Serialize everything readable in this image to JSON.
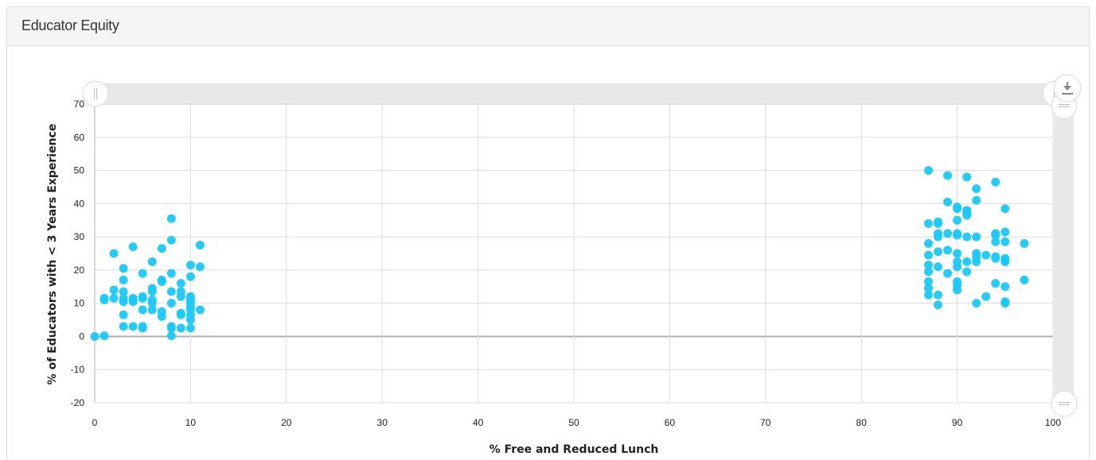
{
  "panel": {
    "title": "Educator Equity"
  },
  "colors": {
    "point": "#1ec8f5",
    "grid": "#dcdcdc",
    "zero_line": "#b0b0b0",
    "scrollbar": "#e8e8e8"
  },
  "chart_data": {
    "type": "scatter",
    "title": "",
    "xlabel": "% Free and Reduced Lunch",
    "ylabel": "% of Educators with < 3 Years Experience",
    "xlim": [
      0,
      100
    ],
    "ylim": [
      -20,
      70
    ],
    "xticks": [
      0,
      10,
      20,
      30,
      40,
      50,
      60,
      70,
      80,
      90,
      100
    ],
    "yticks": [
      -20,
      -10,
      0,
      10,
      20,
      30,
      40,
      50,
      60,
      70
    ],
    "grid": true,
    "series": [
      {
        "points": [
          [
            0,
            0
          ],
          [
            1,
            0.2
          ],
          [
            1,
            11
          ],
          [
            1,
            11.5
          ],
          [
            2,
            11.5
          ],
          [
            2,
            14
          ],
          [
            2,
            25
          ],
          [
            3,
            3
          ],
          [
            3,
            6.5
          ],
          [
            3,
            10.5
          ],
          [
            3,
            11.5
          ],
          [
            3,
            13.5
          ],
          [
            3,
            17
          ],
          [
            3,
            20.5
          ],
          [
            4,
            3
          ],
          [
            4,
            10.5
          ],
          [
            4,
            11
          ],
          [
            4,
            11.5
          ],
          [
            4,
            27
          ],
          [
            5,
            2.5
          ],
          [
            5,
            3
          ],
          [
            5,
            8
          ],
          [
            5,
            11.5
          ],
          [
            5,
            12
          ],
          [
            5,
            19
          ],
          [
            6,
            8
          ],
          [
            6,
            10
          ],
          [
            6,
            11
          ],
          [
            6,
            13.5
          ],
          [
            6,
            14.5
          ],
          [
            6,
            22.5
          ],
          [
            7,
            6
          ],
          [
            7,
            7.5
          ],
          [
            7,
            16.5
          ],
          [
            7,
            17
          ],
          [
            7,
            26.5
          ],
          [
            8,
            0.2
          ],
          [
            8,
            2.5
          ],
          [
            8,
            3
          ],
          [
            8,
            10
          ],
          [
            8,
            13.5
          ],
          [
            8,
            19
          ],
          [
            8,
            29
          ],
          [
            8,
            35.5
          ],
          [
            9,
            2.5
          ],
          [
            9,
            6.5
          ],
          [
            9,
            7
          ],
          [
            9,
            12
          ],
          [
            9,
            13.5
          ],
          [
            9,
            16
          ],
          [
            10,
            2.5
          ],
          [
            10,
            5
          ],
          [
            10,
            6.5
          ],
          [
            10,
            8
          ],
          [
            10,
            9
          ],
          [
            10,
            10
          ],
          [
            10,
            11
          ],
          [
            10,
            12
          ],
          [
            10,
            18
          ],
          [
            10,
            21.5
          ],
          [
            11,
            8
          ],
          [
            11,
            21
          ],
          [
            11,
            27.5
          ],
          [
            87,
            12.5
          ],
          [
            87,
            14.5
          ],
          [
            87,
            16.5
          ],
          [
            87,
            19.5
          ],
          [
            87,
            21.5
          ],
          [
            87,
            24.5
          ],
          [
            87,
            28
          ],
          [
            87,
            34
          ],
          [
            87,
            50
          ],
          [
            88,
            9.5
          ],
          [
            88,
            12.5
          ],
          [
            88,
            21
          ],
          [
            88,
            25.5
          ],
          [
            88,
            30
          ],
          [
            88,
            31
          ],
          [
            88,
            34
          ],
          [
            88,
            34.5
          ],
          [
            89,
            19
          ],
          [
            89,
            26
          ],
          [
            89,
            31
          ],
          [
            89,
            40.5
          ],
          [
            89,
            48.5
          ],
          [
            90,
            14
          ],
          [
            90,
            15.5
          ],
          [
            90,
            16.5
          ],
          [
            90,
            21
          ],
          [
            90,
            22.5
          ],
          [
            90,
            25
          ],
          [
            90,
            30.5
          ],
          [
            90,
            31
          ],
          [
            90,
            35
          ],
          [
            90,
            38.5
          ],
          [
            90,
            39
          ],
          [
            91,
            19.5
          ],
          [
            91,
            22.5
          ],
          [
            91,
            30
          ],
          [
            91,
            36.5
          ],
          [
            91,
            37.5
          ],
          [
            91,
            38
          ],
          [
            91,
            48
          ],
          [
            92,
            10
          ],
          [
            92,
            22.5
          ],
          [
            92,
            24
          ],
          [
            92,
            25
          ],
          [
            92,
            30
          ],
          [
            92,
            41
          ],
          [
            92,
            44.5
          ],
          [
            93,
            12
          ],
          [
            93,
            24.5
          ],
          [
            94,
            16
          ],
          [
            94,
            23.5
          ],
          [
            94,
            24
          ],
          [
            94,
            28.5
          ],
          [
            94,
            30.5
          ],
          [
            94,
            31
          ],
          [
            94,
            46.5
          ],
          [
            95,
            10
          ],
          [
            95,
            10.5
          ],
          [
            95,
            15
          ],
          [
            95,
            22.5
          ],
          [
            95,
            23
          ],
          [
            95,
            23.5
          ],
          [
            95,
            28.5
          ],
          [
            95,
            31.5
          ],
          [
            95,
            38.5
          ],
          [
            97,
            17
          ],
          [
            97,
            28
          ]
        ]
      }
    ]
  }
}
